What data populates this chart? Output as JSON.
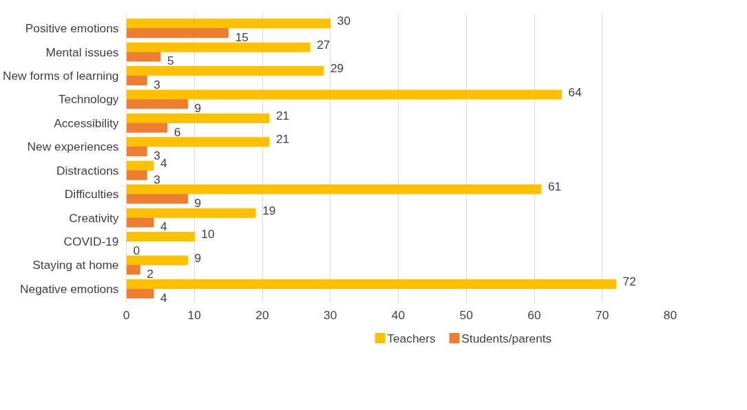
{
  "chart_data": {
    "type": "bar",
    "orientation": "horizontal",
    "categories": [
      "Positive emotions",
      "Mental issues",
      "New forms of learning",
      "Technology",
      "Accessibility",
      "New experiences",
      "Distractions",
      "Difficulties",
      "Creativity",
      "COVID-19",
      "Staying at home",
      "Negative emotions"
    ],
    "series": [
      {
        "name": "Teachers",
        "color": "#ffc000",
        "values": [
          30,
          27,
          29,
          64,
          21,
          21,
          4,
          61,
          19,
          10,
          9,
          72
        ]
      },
      {
        "name": "Students/parents",
        "color": "#ed7d31",
        "values": [
          15,
          5,
          3,
          9,
          6,
          3,
          3,
          9,
          4,
          0,
          2,
          4
        ]
      }
    ],
    "xlim": [
      0,
      80
    ],
    "xticks": [
      0,
      10,
      20,
      30,
      40,
      50,
      60,
      70,
      80
    ],
    "grid": "x",
    "legend": "bottom",
    "data_labels": true
  }
}
